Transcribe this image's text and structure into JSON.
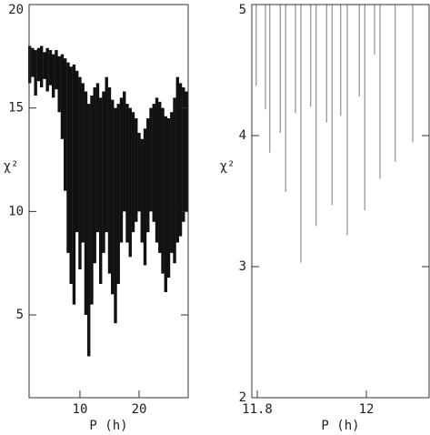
{
  "chart_data": [
    {
      "type": "range",
      "xlabel": "P (h)",
      "ylabel": "χ²",
      "x": [
        1.5,
        2,
        2.5,
        3,
        3.5,
        4,
        4.5,
        5,
        5.5,
        6,
        6.5,
        7,
        7.5,
        8,
        8.5,
        9,
        9.5,
        10,
        10.5,
        11,
        11.5,
        12,
        12.5,
        13,
        13.5,
        14,
        14.5,
        15,
        15.5,
        16,
        16.5,
        17,
        17.5,
        18,
        18.5,
        19,
        19.5,
        20,
        20.5,
        21,
        21.5,
        22,
        22.5,
        23,
        23.5,
        24,
        24.5,
        25,
        25.5,
        26,
        26.5,
        27,
        27.5,
        28
      ],
      "low": [
        16.2,
        16.5,
        15.6,
        16.3,
        16.0,
        16.4,
        15.8,
        16.1,
        15.5,
        15.9,
        14.8,
        13.5,
        11.0,
        8.0,
        6.5,
        5.5,
        9.0,
        7.2,
        8.5,
        5.0,
        3.0,
        5.5,
        7.5,
        9.0,
        6.5,
        8.0,
        9.0,
        7.0,
        6.0,
        4.6,
        6.5,
        8.5,
        10.0,
        8.5,
        7.8,
        9.0,
        9.5,
        10.0,
        8.5,
        7.4,
        9.0,
        10.0,
        9.5,
        8.5,
        8.0,
        7.0,
        6.1,
        6.8,
        8.0,
        7.5,
        8.5,
        8.8,
        9.5,
        10.0
      ],
      "high": [
        18.0,
        17.9,
        17.8,
        17.9,
        18.0,
        17.7,
        17.9,
        17.8,
        17.6,
        17.8,
        17.5,
        17.6,
        17.4,
        17.2,
        17.0,
        17.1,
        16.8,
        16.5,
        16.2,
        15.8,
        15.2,
        15.6,
        16.0,
        16.2,
        15.5,
        15.8,
        16.5,
        16.0,
        15.4,
        15.0,
        15.2,
        15.5,
        15.8,
        15.2,
        15.0,
        14.8,
        14.5,
        13.8,
        13.5,
        14.0,
        14.5,
        15.0,
        15.2,
        15.5,
        15.3,
        15.0,
        14.6,
        14.5,
        14.8,
        15.5,
        16.5,
        16.2,
        16.0,
        15.8
      ],
      "color": "#111111",
      "xlim": [
        1.4,
        28.3
      ],
      "xticks": [
        10,
        20
      ],
      "ylim": [
        1,
        20
      ],
      "yticks": [
        5,
        10,
        15,
        20
      ]
    },
    {
      "type": "spike",
      "xlabel": "P (h)",
      "ylabel": "χ²",
      "x": [
        11.798,
        11.815,
        11.823,
        11.842,
        11.852,
        11.87,
        11.88,
        11.898,
        11.908,
        11.927,
        11.937,
        11.953,
        11.965,
        11.987,
        11.997,
        12.015,
        12.025,
        12.053,
        12.085
      ],
      "values": [
        4.38,
        4.2,
        3.87,
        4.02,
        3.57,
        4.17,
        3.03,
        4.22,
        3.31,
        4.1,
        3.47,
        4.15,
        3.24,
        4.3,
        3.43,
        4.62,
        3.67,
        3.8,
        3.95
      ],
      "color": "#777777",
      "xlim": [
        11.79,
        12.115
      ],
      "xticks": [
        11.8,
        12
      ],
      "ylim": [
        2,
        5
      ],
      "yticks": [
        2,
        3,
        4,
        5
      ]
    }
  ]
}
